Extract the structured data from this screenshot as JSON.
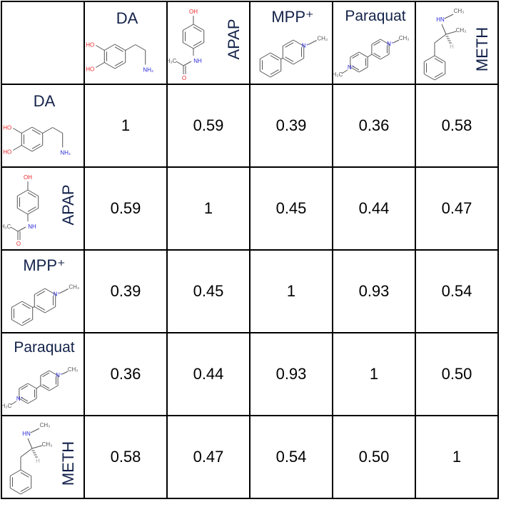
{
  "chart_data": {
    "type": "table",
    "col_labels": [
      "DA",
      "APAP",
      "MPP⁺",
      "Paraquat",
      "METH"
    ],
    "row_labels": [
      "DA",
      "APAP",
      "MPP⁺",
      "Paraquat",
      "METH"
    ],
    "values": [
      [
        "1",
        "0.59",
        "0.39",
        "0.36",
        "0.58"
      ],
      [
        "0.59",
        "1",
        "0.45",
        "0.44",
        "0.47"
      ],
      [
        "0.39",
        "0.45",
        "1",
        "0.93",
        "0.54"
      ],
      [
        "0.36",
        "0.44",
        "0.93",
        "1",
        "0.50"
      ],
      [
        "0.58",
        "0.47",
        "0.54",
        "0.50",
        "1"
      ]
    ]
  },
  "molecules": {
    "DA": {
      "OH1": "HO",
      "OH2": "HO",
      "N": "NH₂"
    },
    "APAP": {
      "OH": "OH",
      "N": "NH",
      "O": "O",
      "Me": "H₃C"
    },
    "MPP": {
      "N": "N⁺",
      "Me": "CH₃"
    },
    "Paraquat": {
      "N1": "N⁺",
      "Me1": "H₃C",
      "N2": "N⁺",
      "Me2": "CH₃"
    },
    "METH": {
      "N": "HN",
      "Me1": "CH₃",
      "Me2": "CH₃",
      "H": "H"
    }
  },
  "colors": {
    "name": "#13224a",
    "oxygen": "#e8262a",
    "nitrogen": "#2b2bd9",
    "bond": "#555555",
    "grid": "#000000"
  }
}
